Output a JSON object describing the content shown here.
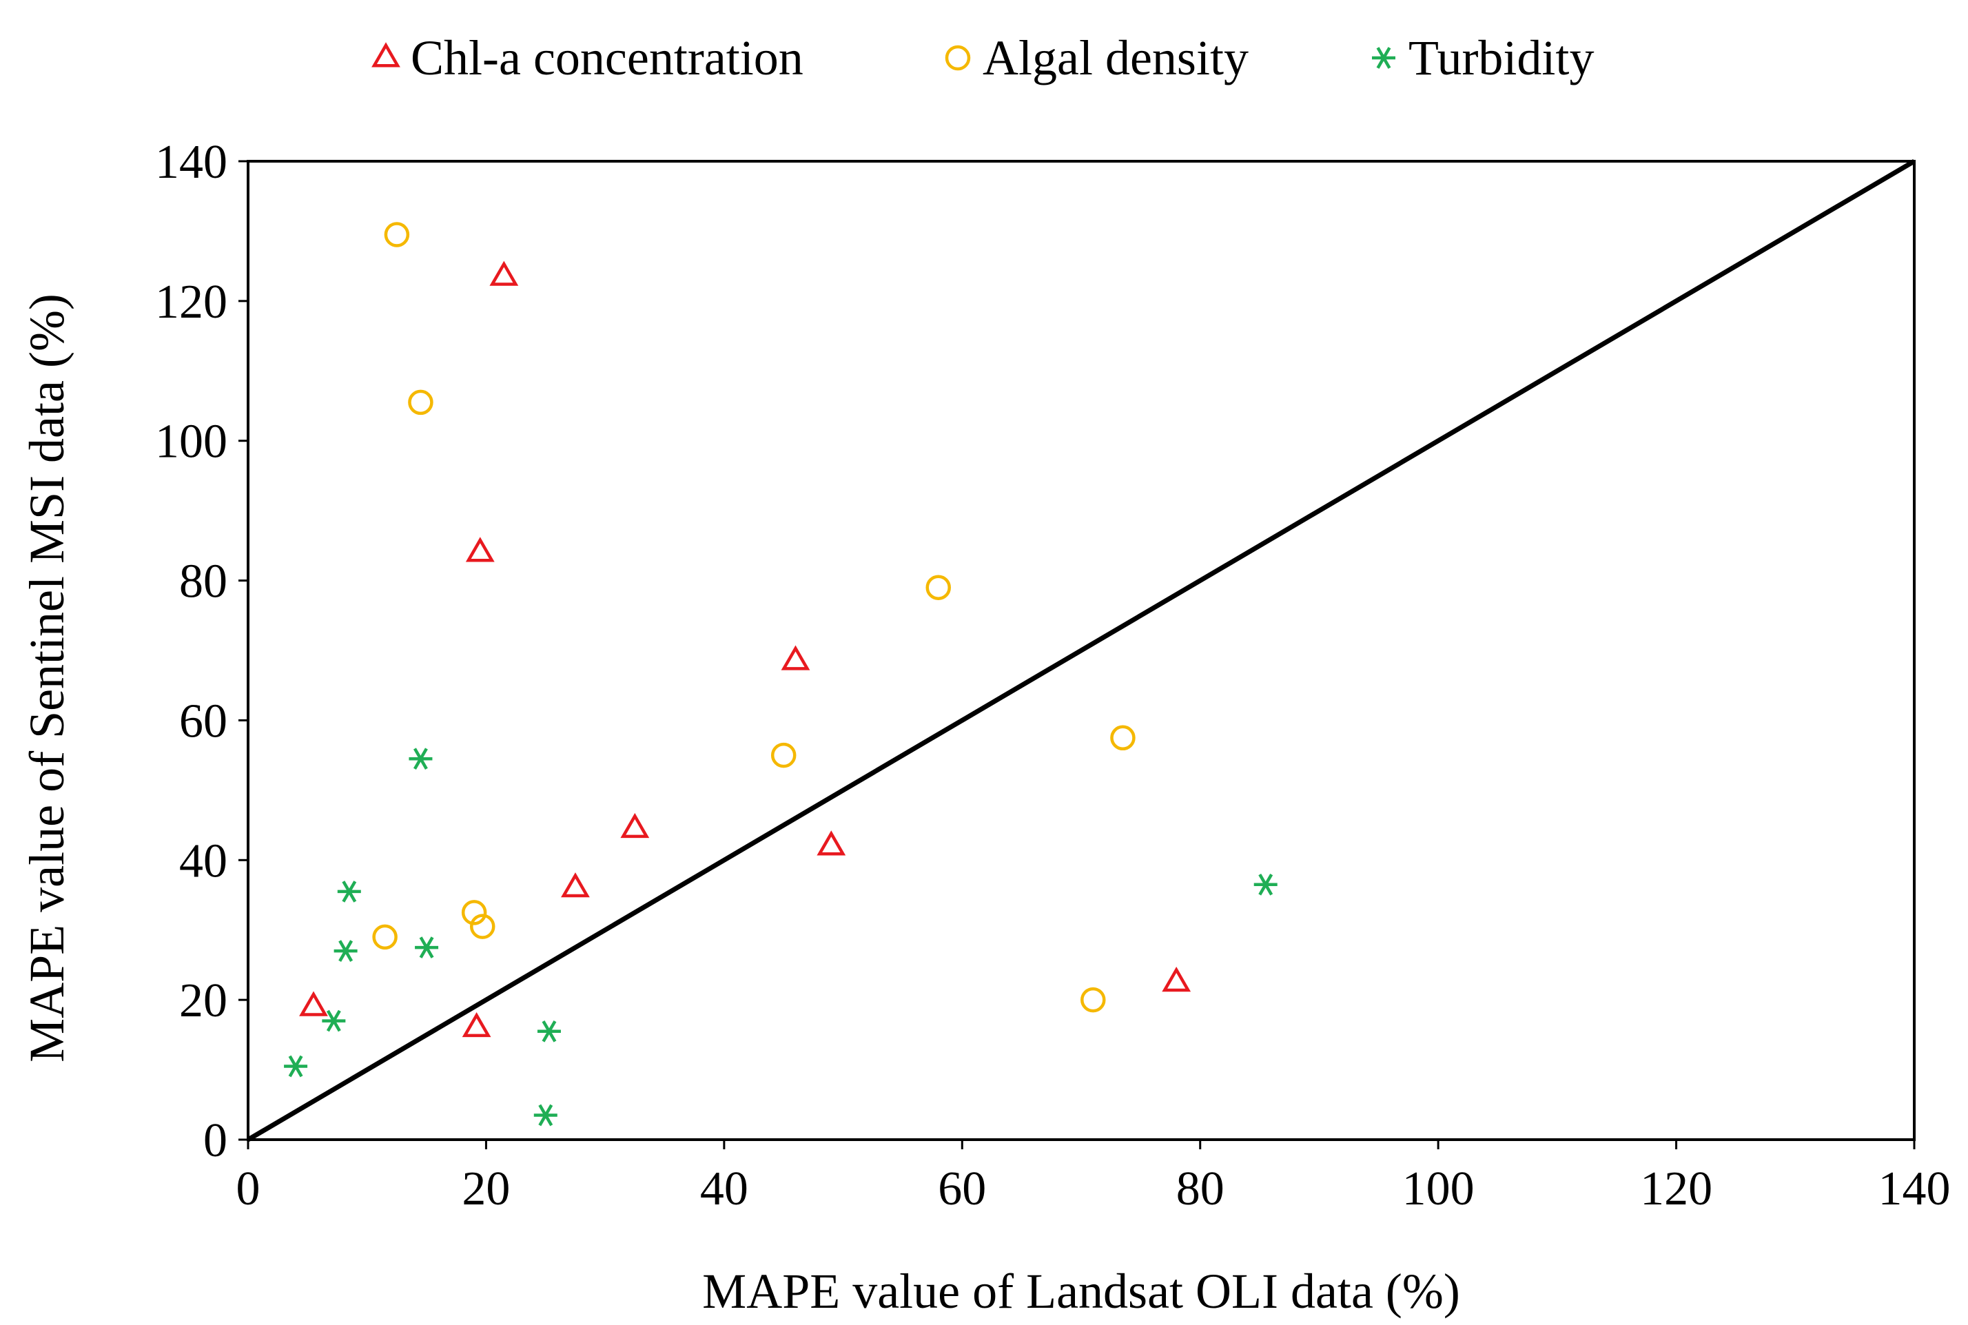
{
  "chart_data": {
    "type": "scatter",
    "title": "",
    "xlabel": "MAPE value of Landsat OLI data (%)",
    "ylabel": "MAPE value of Sentinel MSI data (%)",
    "xlim": [
      0,
      140
    ],
    "ylim": [
      0,
      140
    ],
    "x_ticks": [
      "0",
      "20",
      "40",
      "60",
      "80",
      "100",
      "120",
      "140"
    ],
    "y_ticks": [
      "0",
      "20",
      "40",
      "60",
      "80",
      "100",
      "120",
      "140"
    ],
    "grid": false,
    "legend_position": "top",
    "reference_line": {
      "from": [
        0,
        0
      ],
      "to": [
        140,
        140
      ],
      "color": "#000000"
    },
    "series": [
      {
        "name": "Chl-a concentration",
        "marker": "triangle",
        "color": "#E8191F",
        "points": [
          [
            5.5,
            19
          ],
          [
            19.2,
            16
          ],
          [
            19.5,
            84
          ],
          [
            21.5,
            123.5
          ],
          [
            27.5,
            36
          ],
          [
            32.5,
            44.5
          ],
          [
            46,
            68.5
          ],
          [
            49,
            42
          ],
          [
            78,
            22.5
          ]
        ]
      },
      {
        "name": "Algal density",
        "marker": "circle",
        "color": "#F5B800",
        "points": [
          [
            12.5,
            129.5
          ],
          [
            14.5,
            105.5
          ],
          [
            11.5,
            29
          ],
          [
            19,
            32.5
          ],
          [
            19.7,
            30.5
          ],
          [
            45,
            55
          ],
          [
            58,
            79
          ],
          [
            71,
            20
          ],
          [
            73.5,
            57.5
          ]
        ]
      },
      {
        "name": "Turbidity",
        "marker": "asterisk",
        "color": "#1FAE55",
        "points": [
          [
            4,
            10.5
          ],
          [
            7.2,
            17
          ],
          [
            8.2,
            27
          ],
          [
            8.5,
            35.5
          ],
          [
            14.5,
            54.5
          ],
          [
            15,
            27.5
          ],
          [
            25,
            3.5
          ],
          [
            25.3,
            15.5
          ],
          [
            85.5,
            36.5
          ]
        ]
      }
    ]
  }
}
